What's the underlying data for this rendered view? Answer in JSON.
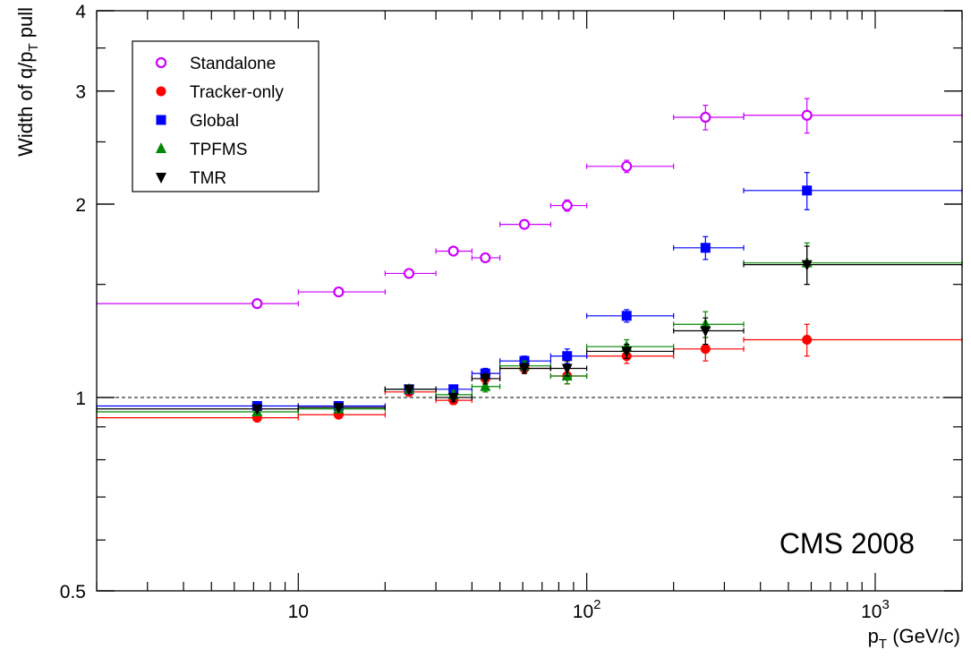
{
  "chart_data": {
    "type": "scatter",
    "title": "",
    "xlabel": {
      "main": "p",
      "sub": "T",
      "rest": " (GeV/c)"
    },
    "ylabel": {
      "pre": "Width of q/p",
      "sub": "T",
      "post": " pull"
    },
    "xscale": "log",
    "yscale": "log",
    "xlim": [
      2,
      2000
    ],
    "ylim": [
      0.5,
      4
    ],
    "x_tick_labels": [
      {
        "value": 10,
        "base": "10",
        "exp": ""
      },
      {
        "value": 100,
        "base": "10",
        "exp": "2"
      },
      {
        "value": 1000,
        "base": "10",
        "exp": "3"
      }
    ],
    "y_tick_labels": [
      {
        "value": 0.5,
        "label": "0.5"
      },
      {
        "value": 1,
        "label": "1"
      },
      {
        "value": 2,
        "label": "2"
      },
      {
        "value": 3,
        "label": "3"
      },
      {
        "value": 4,
        "label": "4"
      }
    ],
    "reference_line": {
      "y": 1,
      "style": "dashed"
    },
    "annotation": "CMS 2008",
    "legend_position": "top-left",
    "bins": [
      [
        2,
        10
      ],
      [
        10,
        20
      ],
      [
        20,
        30
      ],
      [
        30,
        40
      ],
      [
        40,
        50
      ],
      [
        50,
        75
      ],
      [
        75,
        100
      ],
      [
        100,
        200
      ],
      [
        200,
        350
      ],
      [
        350,
        2000
      ]
    ],
    "x_centers": [
      7.2,
      13.8,
      24.2,
      34.5,
      44.5,
      60.8,
      85.5,
      137.5,
      258,
      580
    ],
    "series": [
      {
        "name": "Standalone",
        "marker": "open-circle",
        "color": "#cc00ff",
        "values": [
          1.4,
          1.46,
          1.56,
          1.69,
          1.65,
          1.86,
          1.99,
          2.29,
          2.73,
          2.75
        ],
        "errors": [
          0.01,
          0.01,
          0.015,
          0.02,
          0.02,
          0.025,
          0.04,
          0.05,
          0.12,
          0.17
        ]
      },
      {
        "name": "Tracker-only",
        "marker": "filled-circle",
        "color": "#ff0000",
        "values": [
          0.93,
          0.94,
          1.02,
          0.99,
          1.07,
          1.11,
          1.08,
          1.16,
          1.19,
          1.23
        ],
        "errors": [
          0.005,
          0.005,
          0.01,
          0.015,
          0.02,
          0.02,
          0.03,
          0.03,
          0.05,
          0.07
        ]
      },
      {
        "name": "Global",
        "marker": "filled-square",
        "color": "#0000ff",
        "values": [
          0.97,
          0.97,
          1.03,
          1.03,
          1.09,
          1.14,
          1.16,
          1.34,
          1.71,
          2.1
        ],
        "errors": [
          0.005,
          0.005,
          0.01,
          0.01,
          0.02,
          0.02,
          0.03,
          0.03,
          0.07,
          0.14
        ]
      },
      {
        "name": "TPFMS",
        "marker": "filled-triangle-up",
        "color": "#008800",
        "values": [
          0.95,
          0.96,
          1.03,
          1.01,
          1.04,
          1.12,
          1.08,
          1.2,
          1.3,
          1.62
        ],
        "errors": [
          0.005,
          0.005,
          0.01,
          0.015,
          0.02,
          0.02,
          0.03,
          0.03,
          0.06,
          0.12
        ]
      },
      {
        "name": "TMR",
        "marker": "filled-triangle-down",
        "color": "#000000",
        "values": [
          0.96,
          0.965,
          1.03,
          1.0,
          1.07,
          1.11,
          1.11,
          1.18,
          1.27,
          1.61
        ],
        "errors": [
          0.005,
          0.005,
          0.01,
          0.015,
          0.02,
          0.02,
          0.03,
          0.03,
          0.06,
          0.11
        ]
      }
    ]
  }
}
